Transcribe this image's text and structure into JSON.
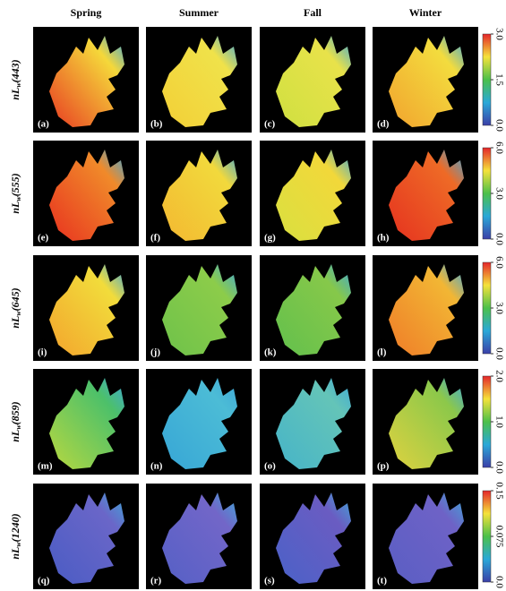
{
  "columns": [
    "Spring",
    "Summer",
    "Fall",
    "Winter"
  ],
  "rows": [
    {
      "label": {
        "prefix": "nL",
        "sub": "w",
        "suffix": "(443)"
      },
      "colorbar": [
        "0.0",
        "1.5",
        "3.0"
      ],
      "panels": [
        "(a)",
        "(b)",
        "(c)",
        "(d)"
      ]
    },
    {
      "label": {
        "prefix": "nL",
        "sub": "w",
        "suffix": "(555)"
      },
      "colorbar": [
        "0.0",
        "3.0",
        "6.0"
      ],
      "panels": [
        "(e)",
        "(f)",
        "(g)",
        "(h)"
      ]
    },
    {
      "label": {
        "prefix": "nL",
        "sub": "w",
        "suffix": "(645)"
      },
      "colorbar": [
        "0.0",
        "3.0",
        "6.0"
      ],
      "panels": [
        "(i)",
        "(j)",
        "(k)",
        "(l)"
      ]
    },
    {
      "label": {
        "prefix": "nL",
        "sub": "w",
        "suffix": "(859)"
      },
      "colorbar": [
        "0.0",
        "1.0",
        "2.0"
      ],
      "panels": [
        "(m)",
        "(n)",
        "(o)",
        "(p)"
      ]
    },
    {
      "label": {
        "prefix": "nL",
        "sub": "w",
        "suffix": "(1240)"
      },
      "colorbar": [
        "0.0",
        "0.075",
        "0.15"
      ],
      "panels": [
        "(q)",
        "(r)",
        "(s)",
        "(t)"
      ]
    }
  ]
}
